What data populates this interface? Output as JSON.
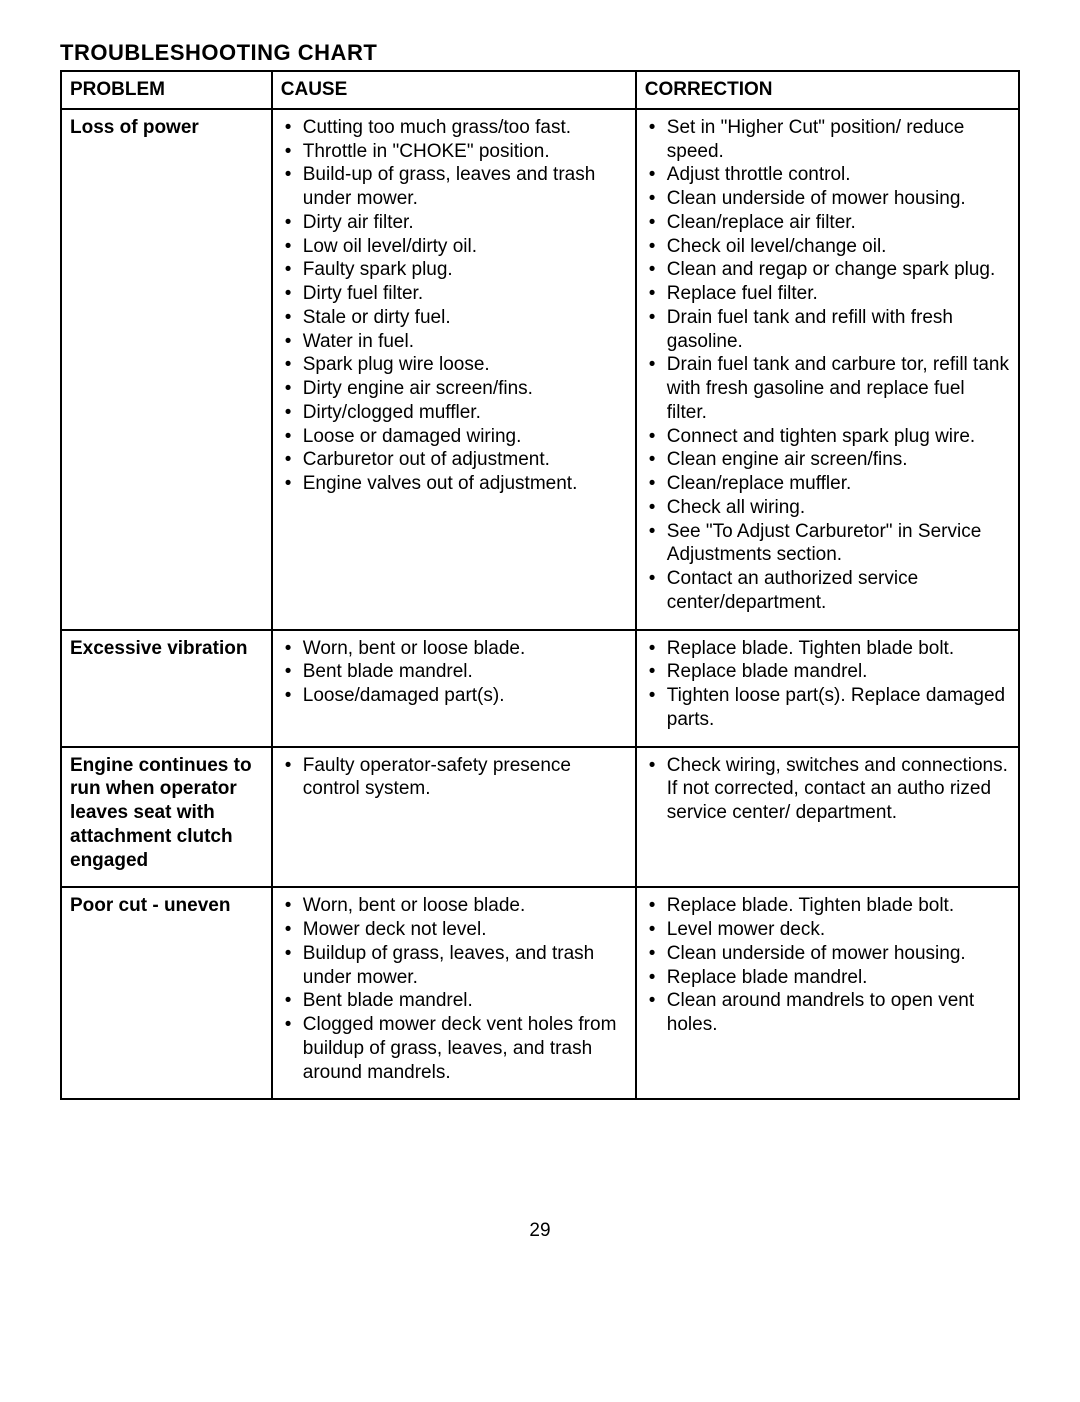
{
  "title": "TROUBLESHOOTING CHART",
  "headers": {
    "problem": "PROBLEM",
    "cause": "CAUSE",
    "correction": "CORRECTION"
  },
  "rows": [
    {
      "problem": "Loss of power",
      "causes": [
        "Cutting too much grass/too fast.",
        "Throttle in \"CHOKE\" position.",
        "Build-up of grass, leaves and trash under mower.",
        "Dirty air filter.",
        "Low oil level/dirty oil.",
        "Faulty spark plug.",
        "Dirty fuel filter.",
        "Stale or dirty fuel.",
        "Water in fuel.",
        "Spark plug wire loose.",
        "Dirty engine air screen/fins.",
        "Dirty/clogged muffler.",
        "Loose or damaged wiring.",
        "Carburetor out of adjustment.",
        "Engine valves out of adjustment."
      ],
      "corrections": [
        "Set in \"Higher Cut\" position/ reduce speed.",
        "Adjust throttle control.",
        "Clean underside of mower housing.",
        "Clean/replace air filter.",
        "Check oil level/change oil.",
        "Clean and regap or change spark plug.",
        "Replace fuel filter.",
        "Drain fuel tank and refill with fresh gasoline.",
        "Drain fuel tank and carbure tor, refill tank with fresh gasoline and replace fuel filter.",
        "Connect and tighten spark plug wire.",
        "Clean engine air screen/fins.",
        "Clean/replace muffler.",
        "Check all wiring.",
        "See \"To Adjust Carburetor\" in Service Adjustments section.",
        "Contact an authorized service center/department."
      ]
    },
    {
      "problem": "Excessive vibration",
      "causes": [
        "Worn, bent or loose blade.",
        "Bent blade mandrel.",
        "Loose/damaged part(s)."
      ],
      "corrections": [
        "Replace blade. Tighten blade bolt.",
        "Replace blade mandrel.",
        "Tighten loose part(s). Replace damaged parts."
      ]
    },
    {
      "problem": "Engine continues to run when operator leaves seat with attachment clutch engaged",
      "causes": [
        "Faulty operator-safety presence control system."
      ],
      "corrections": [
        "Check wiring, switches and connections. If not corrected, contact an autho rized service center/ department."
      ]
    },
    {
      "problem": "Poor cut - uneven",
      "causes": [
        "Worn, bent or loose blade.",
        "Mower deck not level.",
        "Buildup of grass, leaves, and trash under mower.",
        "Bent blade mandrel.",
        "Clogged mower deck vent holes from buildup of grass, leaves, and trash around mandrels."
      ],
      "corrections": [
        "Replace blade. Tighten blade bolt.",
        "Level mower deck.",
        "Clean underside of mower housing.",
        "Replace blade mandrel.",
        "Clean around mandrels to open vent holes."
      ]
    }
  ],
  "pageNumber": "29"
}
